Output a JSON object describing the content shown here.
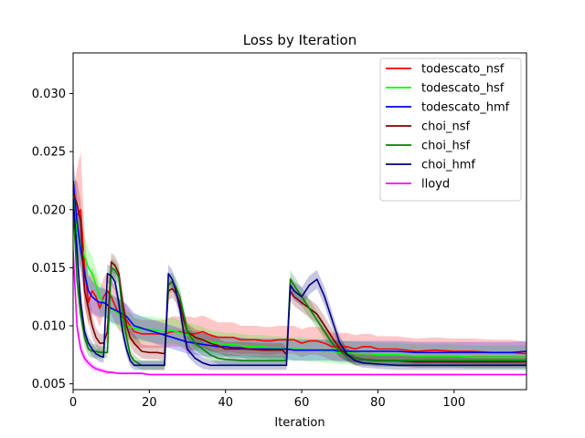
{
  "chart_data": {
    "type": "line",
    "title": "Loss by Iteration",
    "xlabel": "Iteration",
    "ylabel": "",
    "xlim": [
      0,
      119
    ],
    "ylim": [
      0.0045,
      0.0335
    ],
    "xticks": [
      0,
      20,
      40,
      60,
      80,
      100
    ],
    "yticks": [
      0.005,
      0.01,
      0.015,
      0.02,
      0.025,
      0.03
    ],
    "ytick_labels": [
      "0.005",
      "0.010",
      "0.015",
      "0.020",
      "0.025",
      "0.030"
    ],
    "grid": false,
    "legend_position": "upper-right",
    "band": "shaded min-max band around each mean line",
    "series": [
      {
        "name": "todescato_nsf",
        "color": "#ff0000",
        "x": [
          0,
          1,
          2,
          3,
          4,
          5,
          6,
          7,
          8,
          9,
          10,
          12,
          14,
          16,
          18,
          20,
          22,
          24,
          26,
          28,
          30,
          32,
          34,
          36,
          38,
          40,
          42,
          44,
          46,
          48,
          50,
          52,
          54,
          56,
          58,
          60,
          62,
          64,
          66,
          68,
          70,
          72,
          74,
          76,
          78,
          80,
          85,
          90,
          95,
          100,
          105,
          110,
          115,
          119
        ],
        "y": [
          0.0205,
          0.0195,
          0.02,
          0.015,
          0.012,
          0.013,
          0.0125,
          0.0115,
          0.0125,
          0.013,
          0.0125,
          0.011,
          0.0105,
          0.0095,
          0.0093,
          0.0093,
          0.0093,
          0.0093,
          0.0095,
          0.0095,
          0.0093,
          0.0093,
          0.0095,
          0.0092,
          0.009,
          0.009,
          0.009,
          0.0088,
          0.0088,
          0.0088,
          0.0087,
          0.0087,
          0.0088,
          0.0088,
          0.0088,
          0.0085,
          0.0087,
          0.0087,
          0.0085,
          0.0082,
          0.0082,
          0.0082,
          0.008,
          0.0082,
          0.0082,
          0.008,
          0.008,
          0.0078,
          0.0079,
          0.0078,
          0.0078,
          0.0077,
          0.0077,
          0.0076
        ],
        "band": [
          0.0012,
          0.004,
          0.005,
          0.003,
          0.002,
          0.002,
          0.0018,
          0.0016,
          0.0016,
          0.0016,
          0.0015,
          0.0014,
          0.0013,
          0.0012,
          0.0012,
          0.0012,
          0.0012,
          0.0012,
          0.0013,
          0.0013,
          0.0015,
          0.0014,
          0.0014,
          0.0014,
          0.0013,
          0.0013,
          0.0013,
          0.0012,
          0.0012,
          0.0012,
          0.0012,
          0.0012,
          0.0012,
          0.0012,
          0.0012,
          0.0012,
          0.0012,
          0.0012,
          0.0012,
          0.0012,
          0.0012,
          0.0012,
          0.0012,
          0.0011,
          0.0011,
          0.0011,
          0.0011,
          0.0011,
          0.0011,
          0.0011,
          0.0011,
          0.0011,
          0.0011,
          0.001
        ]
      },
      {
        "name": "todescato_hsf",
        "color": "#00ff00",
        "x": [
          0,
          1,
          2,
          3,
          4,
          5,
          6,
          7,
          8,
          9,
          10,
          12,
          14,
          16,
          18,
          20,
          22,
          24,
          26,
          28,
          30,
          32,
          34,
          36,
          38,
          40,
          42,
          44,
          46,
          48,
          50,
          52,
          54,
          56,
          58,
          60,
          62,
          64,
          66,
          68,
          70,
          72,
          74,
          76,
          78,
          80,
          85,
          90,
          95,
          100,
          105,
          110,
          115,
          119
        ],
        "y": [
          0.022,
          0.018,
          0.017,
          0.016,
          0.015,
          0.0145,
          0.0135,
          0.0125,
          0.012,
          0.0118,
          0.0115,
          0.011,
          0.01,
          0.0098,
          0.0097,
          0.0097,
          0.0096,
          0.0095,
          0.0096,
          0.0094,
          0.0092,
          0.009,
          0.0088,
          0.0086,
          0.0085,
          0.0084,
          0.0084,
          0.0083,
          0.0082,
          0.0082,
          0.0082,
          0.0081,
          0.0081,
          0.008,
          0.008,
          0.008,
          0.0079,
          0.0079,
          0.0078,
          0.0078,
          0.0077,
          0.0077,
          0.0076,
          0.0076,
          0.0076,
          0.0075,
          0.0075,
          0.0074,
          0.0074,
          0.0074,
          0.0073,
          0.0073,
          0.0073,
          0.0073
        ],
        "band": [
          0.002,
          0.0025,
          0.002,
          0.0018,
          0.0016,
          0.0015,
          0.0014,
          0.0014,
          0.0013,
          0.0013,
          0.0013,
          0.0012,
          0.0012,
          0.0012,
          0.0011,
          0.0011,
          0.0011,
          0.0011,
          0.0011,
          0.0011,
          0.0011,
          0.0011,
          0.0011,
          0.001,
          0.001,
          0.001,
          0.001,
          0.001,
          0.001,
          0.001,
          0.001,
          0.001,
          0.001,
          0.001,
          0.001,
          0.001,
          0.001,
          0.001,
          0.001,
          0.001,
          0.001,
          0.001,
          0.001,
          0.001,
          0.001,
          0.001,
          0.001,
          0.001,
          0.001,
          0.001,
          0.001,
          0.001,
          0.001,
          0.001
        ]
      },
      {
        "name": "todescato_hmf",
        "color": "#0000ff",
        "x": [
          0,
          1,
          2,
          3,
          4,
          5,
          6,
          7,
          8,
          9,
          10,
          12,
          14,
          16,
          18,
          20,
          22,
          24,
          26,
          28,
          30,
          32,
          34,
          36,
          38,
          40,
          42,
          44,
          46,
          48,
          50,
          52,
          54,
          56,
          58,
          60,
          62,
          64,
          66,
          68,
          70,
          72,
          74,
          76,
          78,
          80,
          85,
          90,
          95,
          100,
          105,
          110,
          115,
          119
        ],
        "y": [
          0.0225,
          0.019,
          0.0165,
          0.0145,
          0.013,
          0.0125,
          0.0122,
          0.012,
          0.012,
          0.0118,
          0.0115,
          0.0112,
          0.0108,
          0.01,
          0.0098,
          0.0096,
          0.0094,
          0.0092,
          0.009,
          0.0088,
          0.0086,
          0.0085,
          0.0084,
          0.0083,
          0.0082,
          0.0082,
          0.0081,
          0.0081,
          0.008,
          0.008,
          0.008,
          0.008,
          0.008,
          0.008,
          0.0079,
          0.0079,
          0.0079,
          0.0079,
          0.0079,
          0.0079,
          0.0078,
          0.0078,
          0.0078,
          0.0078,
          0.0078,
          0.0078,
          0.0078,
          0.0077,
          0.0077,
          0.0077,
          0.0077,
          0.0077,
          0.0077,
          0.0078
        ],
        "band": [
          0.002,
          0.002,
          0.0018,
          0.0016,
          0.0015,
          0.0014,
          0.0013,
          0.0013,
          0.0012,
          0.0012,
          0.0012,
          0.0011,
          0.0011,
          0.0011,
          0.001,
          0.001,
          0.001,
          0.001,
          0.001,
          0.001,
          0.001,
          0.001,
          0.001,
          0.001,
          0.0009,
          0.0009,
          0.0009,
          0.0009,
          0.0009,
          0.0009,
          0.0009,
          0.0009,
          0.0009,
          0.0009,
          0.0009,
          0.0009,
          0.0009,
          0.0009,
          0.0009,
          0.0009,
          0.0009,
          0.0009,
          0.0009,
          0.0009,
          0.0009,
          0.0009,
          0.0009,
          0.0009,
          0.0009,
          0.0009,
          0.0009,
          0.0009,
          0.0009,
          0.0009
        ]
      },
      {
        "name": "choi_nsf",
        "color": "#800000",
        "x": [
          0,
          1,
          2,
          3,
          4,
          5,
          6,
          7,
          8,
          9,
          10,
          11,
          12,
          13,
          14,
          15,
          16,
          18,
          20,
          22,
          24,
          25,
          26,
          27,
          28,
          29,
          30,
          32,
          34,
          36,
          38,
          40,
          45,
          50,
          55,
          56,
          57,
          58,
          60,
          62,
          64,
          66,
          68,
          70,
          72,
          74,
          76,
          80,
          85,
          90,
          95,
          100,
          105,
          110,
          115,
          119
        ],
        "y": [
          0.0215,
          0.0205,
          0.019,
          0.013,
          0.0115,
          0.01,
          0.009,
          0.0085,
          0.0085,
          0.0095,
          0.0155,
          0.0152,
          0.0145,
          0.012,
          0.01,
          0.009,
          0.0085,
          0.0078,
          0.0077,
          0.0077,
          0.0076,
          0.013,
          0.0132,
          0.0128,
          0.012,
          0.0105,
          0.0095,
          0.009,
          0.0088,
          0.0085,
          0.0083,
          0.008,
          0.008,
          0.0079,
          0.0079,
          0.0075,
          0.013,
          0.0125,
          0.012,
          0.0115,
          0.011,
          0.01,
          0.009,
          0.008,
          0.0075,
          0.0072,
          0.0071,
          0.007,
          0.007,
          0.0069,
          0.0069,
          0.0069,
          0.0069,
          0.0069,
          0.0069,
          0.0069
        ],
        "band": [
          0.001,
          0.002,
          0.0018,
          0.0015,
          0.0012,
          0.001,
          0.0008,
          0.0008,
          0.0008,
          0.0008,
          0.0008,
          0.0008,
          0.0008,
          0.0008,
          0.0008,
          0.0008,
          0.0008,
          0.0006,
          0.0006,
          0.0006,
          0.0006,
          0.0008,
          0.0008,
          0.0008,
          0.0008,
          0.0008,
          0.0007,
          0.0007,
          0.0007,
          0.0007,
          0.0006,
          0.0006,
          0.0006,
          0.0006,
          0.0006,
          0.0006,
          0.0008,
          0.0008,
          0.0008,
          0.0008,
          0.0008,
          0.0008,
          0.0007,
          0.0007,
          0.0006,
          0.0006,
          0.0005,
          0.0005,
          0.0005,
          0.0005,
          0.0005,
          0.0005,
          0.0005,
          0.0005,
          0.0005,
          0.0005
        ]
      },
      {
        "name": "choi_hsf",
        "color": "#008000",
        "x": [
          0,
          1,
          2,
          3,
          4,
          5,
          6,
          7,
          8,
          9,
          10,
          11,
          12,
          13,
          14,
          15,
          16,
          18,
          20,
          22,
          24,
          25,
          26,
          27,
          28,
          29,
          30,
          32,
          34,
          36,
          38,
          40,
          45,
          50,
          55,
          56,
          57,
          58,
          60,
          62,
          64,
          66,
          68,
          70,
          72,
          74,
          76,
          80,
          85,
          90,
          95,
          100,
          105,
          110,
          115,
          119
        ],
        "y": [
          0.0205,
          0.014,
          0.011,
          0.009,
          0.008,
          0.0078,
          0.0078,
          0.0077,
          0.0077,
          0.0077,
          0.015,
          0.0148,
          0.0142,
          0.011,
          0.009,
          0.0075,
          0.007,
          0.0066,
          0.0066,
          0.0066,
          0.0066,
          0.0135,
          0.0138,
          0.0133,
          0.0125,
          0.011,
          0.0095,
          0.0085,
          0.008,
          0.0075,
          0.0072,
          0.0071,
          0.007,
          0.007,
          0.007,
          0.007,
          0.014,
          0.0135,
          0.0125,
          0.0115,
          0.0105,
          0.0095,
          0.0085,
          0.0078,
          0.0074,
          0.0072,
          0.0071,
          0.007,
          0.007,
          0.007,
          0.007,
          0.007,
          0.007,
          0.007,
          0.007,
          0.007
        ],
        "band": [
          0.0012,
          0.0015,
          0.001,
          0.0008,
          0.0006,
          0.0006,
          0.0006,
          0.0005,
          0.0005,
          0.0005,
          0.0008,
          0.0008,
          0.0008,
          0.0008,
          0.0007,
          0.0006,
          0.0005,
          0.0004,
          0.0004,
          0.0004,
          0.0004,
          0.0008,
          0.0008,
          0.0008,
          0.0008,
          0.0008,
          0.0007,
          0.0006,
          0.0006,
          0.0005,
          0.0005,
          0.0005,
          0.0004,
          0.0004,
          0.0004,
          0.0004,
          0.0008,
          0.0008,
          0.0008,
          0.0008,
          0.0007,
          0.0007,
          0.0006,
          0.0005,
          0.0005,
          0.0004,
          0.0004,
          0.0004,
          0.0004,
          0.0004,
          0.0004,
          0.0004,
          0.0004,
          0.0004,
          0.0004,
          0.0004
        ]
      },
      {
        "name": "choi_hmf",
        "color": "#000080",
        "x": [
          0,
          1,
          2,
          3,
          4,
          5,
          6,
          7,
          8,
          9,
          10,
          11,
          12,
          13,
          14,
          15,
          16,
          18,
          20,
          22,
          24,
          25,
          26,
          27,
          28,
          29,
          30,
          32,
          34,
          36,
          38,
          40,
          45,
          50,
          55,
          56,
          57,
          58,
          60,
          62,
          64,
          66,
          68,
          70,
          72,
          74,
          76,
          80,
          85,
          90,
          95,
          100,
          105,
          110,
          115,
          119
        ],
        "y": [
          0.021,
          0.0165,
          0.012,
          0.0095,
          0.0085,
          0.008,
          0.0076,
          0.0074,
          0.0073,
          0.0145,
          0.0143,
          0.0138,
          0.012,
          0.0095,
          0.008,
          0.007,
          0.0066,
          0.0066,
          0.0066,
          0.0066,
          0.0066,
          0.0145,
          0.014,
          0.013,
          0.0115,
          0.0095,
          0.008,
          0.0072,
          0.0068,
          0.0066,
          0.0066,
          0.0066,
          0.0066,
          0.0066,
          0.0066,
          0.0066,
          0.0135,
          0.013,
          0.0125,
          0.0135,
          0.014,
          0.0125,
          0.0105,
          0.0085,
          0.0075,
          0.007,
          0.0068,
          0.0067,
          0.0066,
          0.0066,
          0.0066,
          0.0066,
          0.0066,
          0.0066,
          0.0066,
          0.0066
        ],
        "band": [
          0.0012,
          0.0015,
          0.001,
          0.0008,
          0.0006,
          0.0006,
          0.0005,
          0.0005,
          0.0005,
          0.0008,
          0.0008,
          0.0008,
          0.0008,
          0.0007,
          0.0006,
          0.0005,
          0.0004,
          0.0004,
          0.0004,
          0.0004,
          0.0004,
          0.0008,
          0.0008,
          0.0008,
          0.0008,
          0.0007,
          0.0006,
          0.0005,
          0.0005,
          0.0004,
          0.0004,
          0.0004,
          0.0004,
          0.0004,
          0.0004,
          0.0004,
          0.0008,
          0.0008,
          0.0008,
          0.0008,
          0.0008,
          0.0008,
          0.0007,
          0.0006,
          0.0005,
          0.0004,
          0.0004,
          0.0004,
          0.0004,
          0.0004,
          0.0004,
          0.0004,
          0.0004,
          0.0004,
          0.0004,
          0.0004
        ]
      },
      {
        "name": "lloyd",
        "color": "#ff00ff",
        "x": [
          0,
          1,
          2,
          3,
          4,
          5,
          6,
          7,
          8,
          9,
          10,
          12,
          14,
          16,
          18,
          20,
          25,
          30,
          40,
          60,
          80,
          100,
          119
        ],
        "y": [
          0.0165,
          0.01,
          0.008,
          0.0072,
          0.0068,
          0.0065,
          0.0063,
          0.0062,
          0.0061,
          0.006,
          0.006,
          0.0059,
          0.0059,
          0.0059,
          0.0059,
          0.0058,
          0.0058,
          0.0058,
          0.0058,
          0.0058,
          0.0058,
          0.0058,
          0.0058
        ],
        "band": [
          0.0015,
          0.0008,
          0.0005,
          0.0004,
          0.0003,
          0.0003,
          0.0002,
          0.0002,
          0.0002,
          0.0002,
          0.0001,
          0.0001,
          0.0001,
          0.0001,
          0.0001,
          0.0001,
          0.0001,
          0.0001,
          0.0001,
          0.0001,
          0.0001,
          0.0001,
          0.0001
        ]
      }
    ]
  }
}
